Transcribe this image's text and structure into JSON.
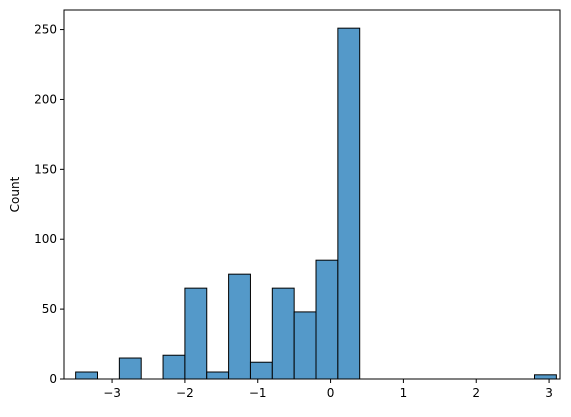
{
  "chart_data": {
    "type": "bar",
    "title": "",
    "xlabel": "",
    "ylabel": "Count",
    "xlim": [
      -3.66,
      3.15
    ],
    "ylim": [
      0,
      264
    ],
    "xticks": [
      -3,
      -2,
      -1,
      0,
      1,
      2,
      3
    ],
    "xtick_labels": [
      "−3",
      "−2",
      "−1",
      "0",
      "1",
      "2",
      "3"
    ],
    "yticks": [
      0,
      50,
      100,
      150,
      200,
      250
    ],
    "ytick_labels": [
      "0",
      "50",
      "100",
      "150",
      "200",
      "250"
    ],
    "grid": false,
    "bar_color": "#5499c9",
    "edge_color": "#000000",
    "bins": [
      {
        "x0": -3.5,
        "x1": -3.2,
        "count": 5
      },
      {
        "x0": -3.2,
        "x1": -2.9,
        "count": 0
      },
      {
        "x0": -2.9,
        "x1": -2.6,
        "count": 15
      },
      {
        "x0": -2.6,
        "x1": -2.3,
        "count": 0
      },
      {
        "x0": -2.3,
        "x1": -2.0,
        "count": 17
      },
      {
        "x0": -2.0,
        "x1": -1.7,
        "count": 65
      },
      {
        "x0": -1.7,
        "x1": -1.4,
        "count": 5
      },
      {
        "x0": -1.4,
        "x1": -1.1,
        "count": 75
      },
      {
        "x0": -1.1,
        "x1": -0.8,
        "count": 12
      },
      {
        "x0": -0.8,
        "x1": -0.5,
        "count": 65
      },
      {
        "x0": -0.5,
        "x1": -0.2,
        "count": 48
      },
      {
        "x0": -0.2,
        "x1": 0.1,
        "count": 85
      },
      {
        "x0": 0.1,
        "x1": 0.4,
        "count": 251
      },
      {
        "x0": 0.4,
        "x1": 0.7,
        "count": 0
      },
      {
        "x0": 0.7,
        "x1": 1.0,
        "count": 0
      },
      {
        "x0": 1.0,
        "x1": 1.3,
        "count": 0
      },
      {
        "x0": 1.3,
        "x1": 1.6,
        "count": 0
      },
      {
        "x0": 1.6,
        "x1": 1.9,
        "count": 0
      },
      {
        "x0": 1.9,
        "x1": 2.2,
        "count": 0
      },
      {
        "x0": 2.2,
        "x1": 2.5,
        "count": 0
      },
      {
        "x0": 2.5,
        "x1": 2.8,
        "count": 0
      },
      {
        "x0": 2.8,
        "x1": 3.1,
        "count": 3
      }
    ]
  }
}
